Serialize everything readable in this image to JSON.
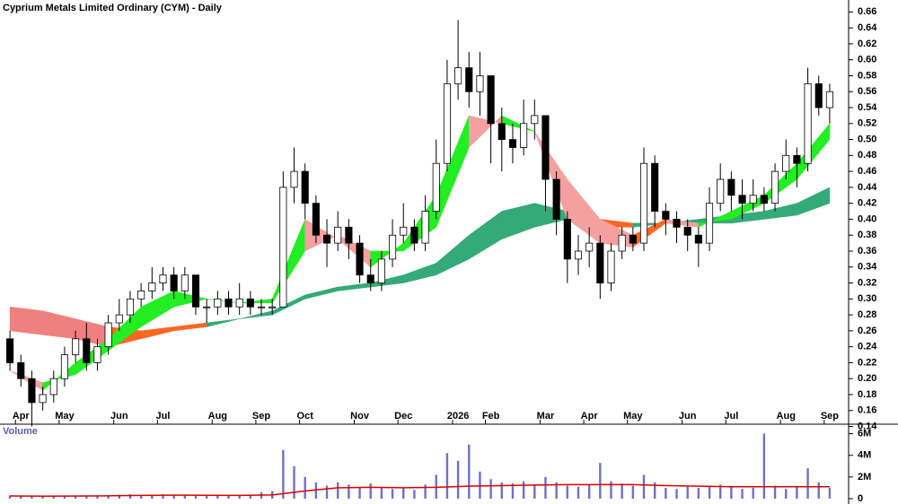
{
  "chart_data": [
    {
      "type": "candlestick",
      "title": "Cyprium Metals Limited Ordinary (CYM) - Daily",
      "categories": [
        null,
        "Apr",
        null,
        null,
        null,
        "May",
        null,
        null,
        null,
        null,
        "Jun",
        null,
        null,
        null,
        "Jul",
        null,
        null,
        null,
        null,
        "Aug",
        null,
        null,
        null,
        "Sep",
        null,
        null,
        null,
        "Oct",
        null,
        null,
        null,
        null,
        "Nov",
        null,
        null,
        null,
        "Dec",
        null,
        null,
        null,
        null,
        "2026",
        null,
        null,
        "Feb",
        null,
        null,
        null,
        null,
        "Mar",
        null,
        null,
        null,
        "Apr",
        null,
        null,
        null,
        "May",
        null,
        null,
        null,
        null,
        "Jun",
        null,
        null,
        null,
        "Jul",
        null,
        null,
        null,
        null,
        "Aug",
        null,
        null,
        null,
        "Sep"
      ],
      "open": [
        0.25,
        0.22,
        0.2,
        0.17,
        0.18,
        0.2,
        0.23,
        0.25,
        0.22,
        0.24,
        0.27,
        0.28,
        0.3,
        0.31,
        0.32,
        0.33,
        0.31,
        0.33,
        0.29,
        0.29,
        0.3,
        0.29,
        0.3,
        0.29,
        0.29,
        0.29,
        0.44,
        0.46,
        0.42,
        0.38,
        0.37,
        0.39,
        0.37,
        0.33,
        0.32,
        0.35,
        0.38,
        0.39,
        0.37,
        0.41,
        0.47,
        0.57,
        0.59,
        0.56,
        0.58,
        0.52,
        0.5,
        0.49,
        0.52,
        0.53,
        0.45,
        0.4,
        0.35,
        0.36,
        0.37,
        0.32,
        0.36,
        0.38,
        0.37,
        0.47,
        0.41,
        0.4,
        0.39,
        0.38,
        0.37,
        0.42,
        0.45,
        0.43,
        0.42,
        0.43,
        0.42,
        0.46,
        0.48,
        0.47,
        0.57,
        0.54
      ],
      "high": [
        0.26,
        0.23,
        0.21,
        0.19,
        0.21,
        0.24,
        0.26,
        0.27,
        0.25,
        0.28,
        0.3,
        0.31,
        0.32,
        0.34,
        0.34,
        0.34,
        0.34,
        0.33,
        0.3,
        0.31,
        0.31,
        0.32,
        0.31,
        0.3,
        0.3,
        0.46,
        0.49,
        0.47,
        0.43,
        0.4,
        0.41,
        0.4,
        0.38,
        0.35,
        0.36,
        0.4,
        0.42,
        0.4,
        0.43,
        0.5,
        0.6,
        0.65,
        0.61,
        0.61,
        0.58,
        0.54,
        0.52,
        0.55,
        0.55,
        0.53,
        0.46,
        0.41,
        0.38,
        0.39,
        0.38,
        0.37,
        0.39,
        0.39,
        0.49,
        0.48,
        0.42,
        0.41,
        0.4,
        0.39,
        0.44,
        0.47,
        0.46,
        0.45,
        0.45,
        0.44,
        0.47,
        0.5,
        0.49,
        0.59,
        0.58,
        0.57
      ],
      "low": [
        0.21,
        0.19,
        0.14,
        0.16,
        0.17,
        0.19,
        0.22,
        0.21,
        0.21,
        0.23,
        0.26,
        0.27,
        0.29,
        0.3,
        0.31,
        0.3,
        0.3,
        0.28,
        0.27,
        0.28,
        0.28,
        0.28,
        0.28,
        0.28,
        0.28,
        0.29,
        0.42,
        0.4,
        0.37,
        0.34,
        0.36,
        0.35,
        0.32,
        0.31,
        0.31,
        0.34,
        0.37,
        0.36,
        0.36,
        0.4,
        0.46,
        0.55,
        0.54,
        0.53,
        0.47,
        0.46,
        0.47,
        0.48,
        0.5,
        0.41,
        0.38,
        0.32,
        0.33,
        0.34,
        0.3,
        0.31,
        0.35,
        0.36,
        0.36,
        0.39,
        0.38,
        0.37,
        0.36,
        0.34,
        0.36,
        0.41,
        0.41,
        0.4,
        0.41,
        0.41,
        0.41,
        0.45,
        0.44,
        0.46,
        0.53,
        0.52
      ],
      "close": [
        0.22,
        0.2,
        0.17,
        0.18,
        0.2,
        0.23,
        0.25,
        0.22,
        0.24,
        0.27,
        0.28,
        0.3,
        0.31,
        0.32,
        0.33,
        0.31,
        0.33,
        0.29,
        0.29,
        0.3,
        0.29,
        0.3,
        0.29,
        0.29,
        0.29,
        0.44,
        0.46,
        0.42,
        0.38,
        0.37,
        0.39,
        0.37,
        0.33,
        0.32,
        0.35,
        0.38,
        0.39,
        0.37,
        0.41,
        0.47,
        0.57,
        0.59,
        0.56,
        0.58,
        0.52,
        0.5,
        0.49,
        0.52,
        0.53,
        0.45,
        0.4,
        0.35,
        0.36,
        0.37,
        0.32,
        0.36,
        0.38,
        0.37,
        0.47,
        0.41,
        0.4,
        0.39,
        0.38,
        0.37,
        0.42,
        0.45,
        0.43,
        0.42,
        0.43,
        0.42,
        0.46,
        0.48,
        0.47,
        0.57,
        0.54,
        0.56
      ],
      "ribbon_x": [
        0,
        3,
        6,
        9,
        12,
        15,
        18,
        21,
        24,
        27,
        30,
        33,
        36,
        39,
        42,
        45,
        48,
        51,
        54,
        57,
        60,
        63,
        66,
        69,
        72,
        75
      ],
      "ribbons": [
        {
          "colors": [
            "#33aa77",
            "#ff6622",
            "#f08080"
          ],
          "fast": [
            0.26,
            0.255,
            0.25,
            0.24,
            0.25,
            0.26,
            0.265,
            0.275,
            0.285,
            0.305,
            0.315,
            0.32,
            0.33,
            0.345,
            0.38,
            0.41,
            0.42,
            0.41,
            0.39,
            0.39,
            0.395,
            0.4,
            0.405,
            0.41,
            0.42,
            0.44
          ],
          "slow": [
            0.29,
            0.285,
            0.275,
            0.265,
            0.26,
            0.265,
            0.27,
            0.275,
            0.28,
            0.3,
            0.31,
            0.315,
            0.32,
            0.33,
            0.35,
            0.375,
            0.39,
            0.4,
            0.4,
            0.395,
            0.395,
            0.395,
            0.395,
            0.4,
            0.405,
            0.42
          ]
        },
        {
          "colors": [
            "#22ee22",
            "#ff6622",
            "#f5a0a0"
          ],
          "fast": [
            0.21,
            0.185,
            0.22,
            0.25,
            0.29,
            0.31,
            0.3,
            0.295,
            0.3,
            0.4,
            0.375,
            0.34,
            0.37,
            0.43,
            0.53,
            0.52,
            0.51,
            0.4,
            0.37,
            0.365,
            0.395,
            0.39,
            0.41,
            0.43,
            0.47,
            0.52
          ],
          "slow": [
            0.21,
            0.195,
            0.205,
            0.235,
            0.265,
            0.29,
            0.3,
            0.295,
            0.295,
            0.36,
            0.38,
            0.36,
            0.36,
            0.39,
            0.49,
            0.53,
            0.51,
            0.45,
            0.4,
            0.38,
            0.4,
            0.395,
            0.4,
            0.42,
            0.45,
            0.5
          ]
        }
      ],
      "ylim": [
        0.135,
        0.675
      ],
      "yticks": [
        0.14,
        0.16,
        0.18,
        {
          "value": 0.2,
          "label": "0.20"
        },
        0.22,
        0.24,
        0.26,
        0.28,
        {
          "value": 0.3,
          "label": "0.30"
        },
        0.32,
        0.34,
        0.36,
        0.38,
        {
          "value": 0.4,
          "label": "0.40"
        },
        0.42,
        0.44,
        0.46,
        0.48,
        {
          "value": 0.5,
          "label": "0.50"
        },
        0.52,
        0.54,
        0.56,
        0.58,
        {
          "value": 0.6,
          "label": "0.60"
        },
        0.62,
        0.64,
        0.66
      ]
    },
    {
      "type": "bar",
      "title": "Volume",
      "color": "#7070c8",
      "ma_color": "#dd0000",
      "values": [
        300000,
        250000,
        200000,
        180000,
        220000,
        250000,
        300000,
        200000,
        250000,
        300000,
        350000,
        400000,
        300000,
        350000,
        400000,
        300000,
        350000,
        250000,
        300000,
        350000,
        300000,
        250000,
        300000,
        600000,
        700000,
        4500000,
        3000000,
        2000000,
        1500000,
        1200000,
        1500000,
        1300000,
        1000000,
        1400000,
        1100000,
        900000,
        1000000,
        800000,
        1300000,
        2200000,
        4200000,
        3500000,
        5000000,
        2500000,
        1800000,
        1500000,
        1400000,
        1600000,
        1300000,
        2000000,
        1500000,
        1200000,
        1100000,
        1300000,
        3300000,
        1600000,
        1400000,
        1200000,
        2200000,
        1500000,
        1000000,
        900000,
        1100000,
        1000000,
        1200000,
        1300000,
        1100000,
        900000,
        1000000,
        6000000,
        1200000,
        900000,
        1100000,
        2800000,
        1500000,
        1000000
      ],
      "ma_x": [
        0,
        3,
        6,
        9,
        12,
        15,
        18,
        21,
        24,
        27,
        30,
        33,
        36,
        39,
        42,
        45,
        48,
        51,
        54,
        57,
        60,
        63,
        66,
        69,
        72,
        75
      ],
      "moving_average": [
        250000,
        230000,
        240000,
        260000,
        300000,
        320000,
        310000,
        300000,
        340000,
        700000,
        1000000,
        1050000,
        1000000,
        1050000,
        1150000,
        1200000,
        1250000,
        1300000,
        1300000,
        1300000,
        1200000,
        1150000,
        1100000,
        1100000,
        1100000,
        1100000
      ],
      "ylim": [
        0,
        6300000
      ],
      "yticks": [
        0,
        {
          "value": 2000000,
          "label": "2M"
        },
        {
          "value": 4000000,
          "label": "4M"
        },
        {
          "value": 6000000,
          "label": "6M"
        }
      ]
    }
  ]
}
